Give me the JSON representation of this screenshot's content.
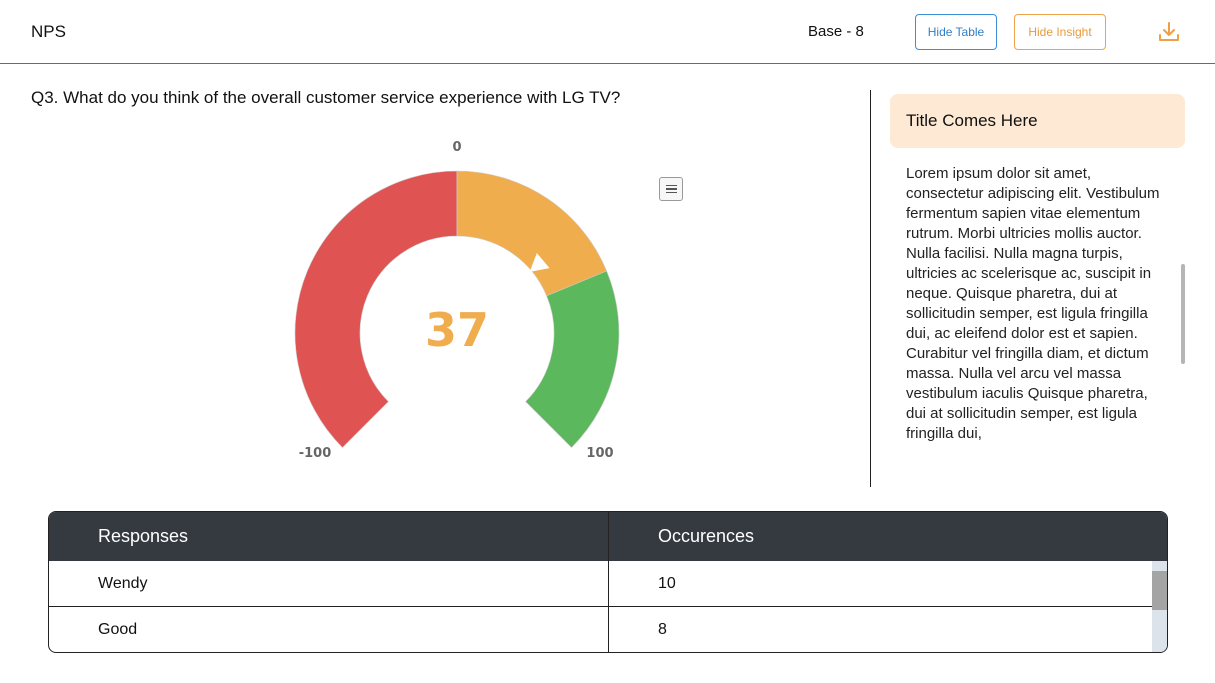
{
  "header": {
    "title": "NPS",
    "base": "Base - 8",
    "hide_table_label": "Hide Table",
    "hide_insight_label": "Hide Insight"
  },
  "question": "Q3.  What do you think of the overall customer service experience with LG TV?",
  "chart_data": {
    "type": "gauge",
    "value": 37,
    "value_label": "37",
    "min": -100,
    "max": 100,
    "tick_labels": [
      "-100",
      "0",
      "100"
    ],
    "bands": [
      {
        "from": -100,
        "to": 0,
        "color": "#df5452"
      },
      {
        "from": 0,
        "to": 50,
        "color": "#f0ad4e"
      },
      {
        "from": 50,
        "to": 100,
        "color": "#5cb85c"
      }
    ],
    "value_color": "#f0ad4e"
  },
  "insight": {
    "title": "Title Comes Here",
    "body": "Lorem ipsum dolor sit amet, consectetur adipiscing elit. Vestibulum fermentum sapien vitae elementum rutrum. Morbi ultricies mollis auctor. Nulla facilisi. Nulla magna turpis, ultricies ac scelerisque ac, suscipit in neque. Quisque pharetra, dui at sollicitudin semper, est ligula fringilla dui, ac eleifend dolor est et sapien. Curabitur vel fringilla diam, et dictum massa. Nulla vel arcu vel massa vestibulum iaculis\nQuisque pharetra, dui at sollicitudin semper, est ligula fringilla dui,"
  },
  "table": {
    "headers": [
      "Responses",
      "Occurences"
    ],
    "rows": [
      [
        "Wendy",
        "10"
      ],
      [
        "Good",
        "8"
      ]
    ]
  },
  "colors": {
    "accent_blue": "#2f7fc8",
    "accent_orange": "#e89a3a",
    "table_header": "#343a40",
    "insight_bg": "#fde9d4"
  },
  "icons": {
    "download": "download-icon",
    "menu": "hamburger-menu-icon"
  }
}
